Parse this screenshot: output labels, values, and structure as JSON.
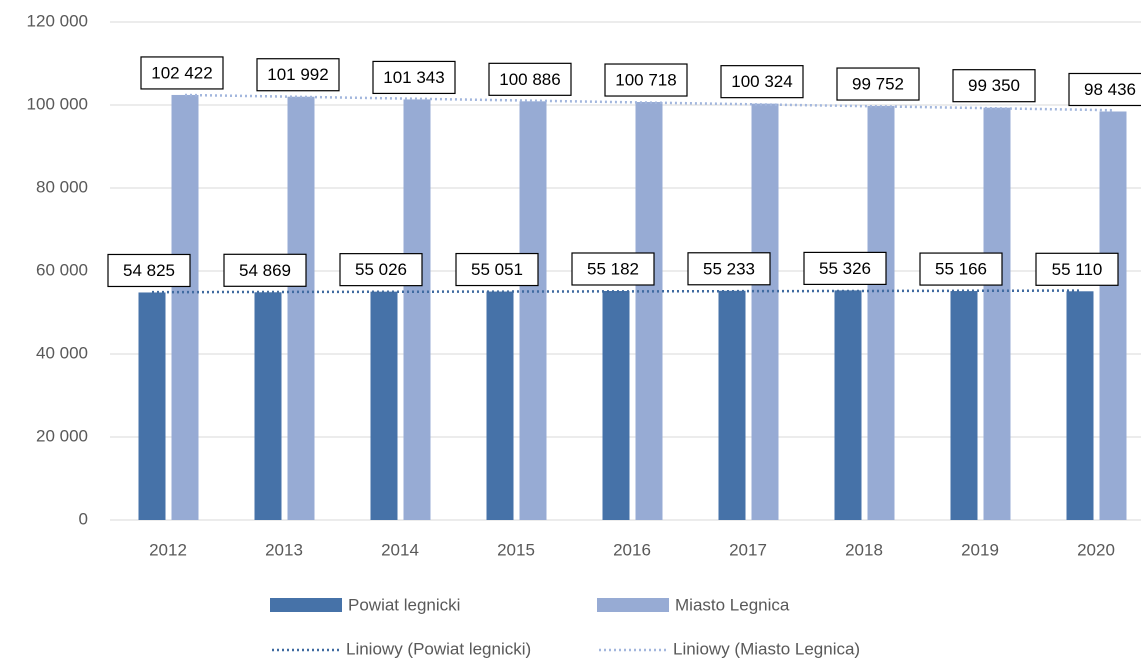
{
  "chart_data": {
    "type": "bar",
    "categories": [
      "2012",
      "2013",
      "2014",
      "2015",
      "2016",
      "2017",
      "2018",
      "2019",
      "2020"
    ],
    "series": [
      {
        "name": "Powiat legnicki",
        "color": "#4672a8",
        "values": [
          54825,
          54869,
          55026,
          55051,
          55182,
          55233,
          55326,
          55166,
          55110
        ],
        "value_labels": [
          "54 825",
          "54 869",
          "55 026",
          "55 051",
          "55 182",
          "55 233",
          "55 326",
          "55 166",
          "55 110"
        ]
      },
      {
        "name": "Miasto Legnica",
        "color": "#97abd4",
        "values": [
          102422,
          101992,
          101343,
          100886,
          100718,
          100324,
          99752,
          99350,
          98436
        ],
        "value_labels": [
          "102 422",
          "101 992",
          "101 343",
          "100 886",
          "100 718",
          "100 324",
          "99 752",
          "99 350",
          "98 436"
        ]
      }
    ],
    "trendlines": [
      {
        "name": "Liniowy (Powiat legnicki)",
        "series": 0,
        "color": "#3f6aa0"
      },
      {
        "name": "Liniowy (Miasto Legnica)",
        "series": 1,
        "color": "#a2b6dd"
      }
    ],
    "ylim": [
      0,
      120000
    ],
    "yticks": [
      0,
      {
        "value": 20000,
        "label": "20 000"
      },
      {
        "value": 40000,
        "label": "40 000"
      },
      {
        "value": 60000,
        "label": "60 000"
      },
      {
        "value": 80000,
        "label": "80 000"
      },
      {
        "value": 100000,
        "label": "100 000"
      },
      {
        "value": 120000,
        "label": "120 000"
      }
    ],
    "grid": true,
    "legend": "bottom"
  }
}
